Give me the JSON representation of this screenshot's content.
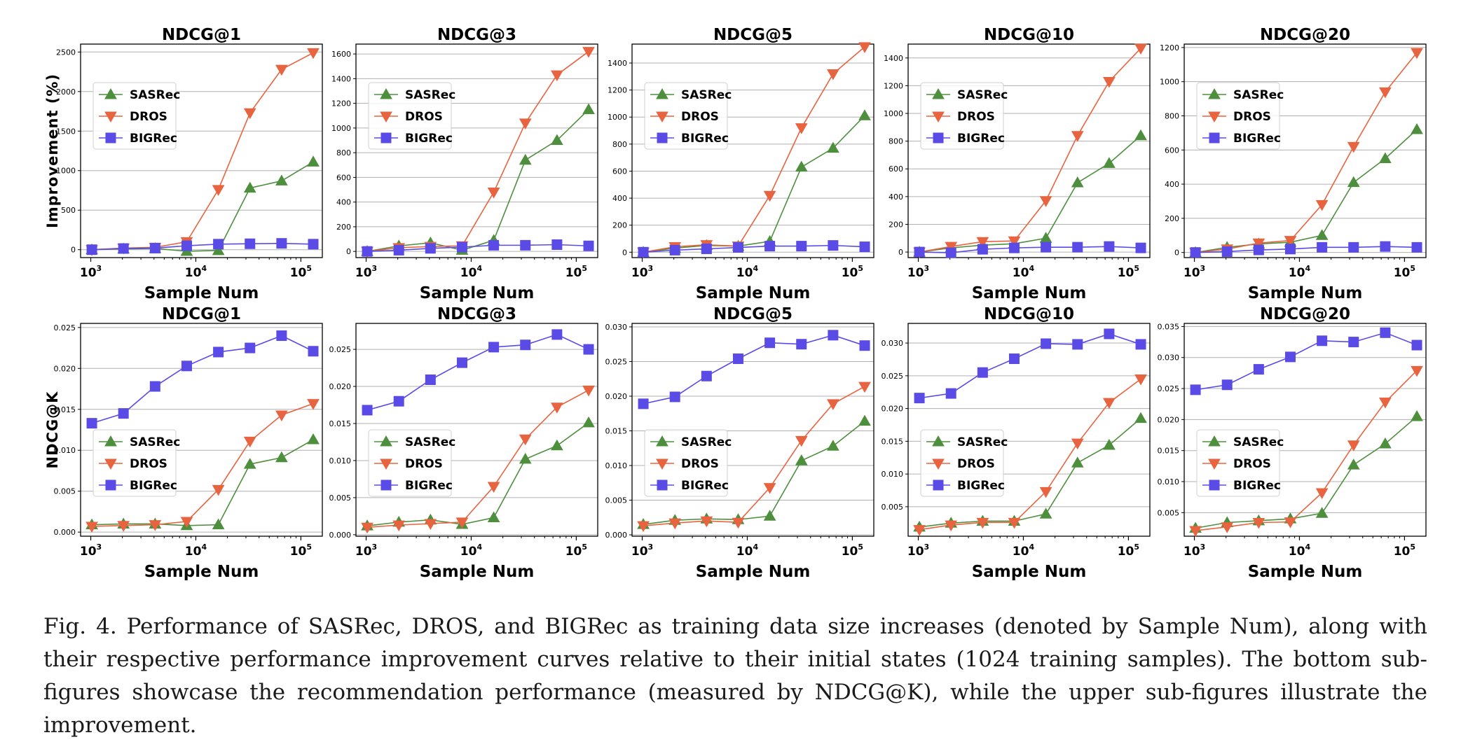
{
  "colors": {
    "SASRec": "#4e8f3e",
    "DROS": "#e8633f",
    "BIGRec": "#5a4be6",
    "grid": "#b0b0b0"
  },
  "legend_labels": [
    "SASRec",
    "DROS",
    "BIGRec"
  ],
  "xtick_labels": [
    {
      "base": "10",
      "exp": "3"
    },
    {
      "base": "10",
      "exp": "4"
    },
    {
      "base": "10",
      "exp": "5"
    }
  ],
  "caption": "Fig. 4.  Performance of SASRec, DROS, and BIGRec as training data size increases (denoted by Sample Num), along with their respective performance improvement curves relative to their initial states (1024 training samples). The bottom sub-figures showcase the recommendation performance (measured by NDCG@K), while the upper sub-figures illustrate the improvement.",
  "chart_data": [
    {
      "type": "line",
      "title": "NDCG@1",
      "xlabel": "Sample Num",
      "ylabel": "Improvement (%)",
      "xscale": "log",
      "xlim": [
        800,
        160000
      ],
      "ylim": [
        -100,
        2600
      ],
      "yticks": [
        0,
        500,
        1000,
        1500,
        2000,
        2500
      ],
      "ytick_labels": [
        "0",
        "500",
        "1000",
        "1500",
        "2000",
        "2500"
      ],
      "grid": "horizontal",
      "legend_position": "upper-left",
      "x": [
        1024,
        2048,
        4096,
        8192,
        16384,
        32768,
        65536,
        131072
      ],
      "series": [
        {
          "name": "SASRec",
          "values": [
            0,
            10,
            15,
            -20,
            -10,
            780,
            870,
            1110
          ]
        },
        {
          "name": "DROS",
          "values": [
            0,
            20,
            30,
            100,
            760,
            1730,
            2280,
            2490
          ]
        },
        {
          "name": "BIGRec",
          "values": [
            0,
            15,
            20,
            50,
            70,
            75,
            80,
            70
          ]
        }
      ]
    },
    {
      "type": "line",
      "title": "NDCG@3",
      "xlabel": "Sample Num",
      "ylabel": "",
      "xscale": "log",
      "xlim": [
        800,
        160000
      ],
      "ylim": [
        -50,
        1680
      ],
      "yticks": [
        0,
        200,
        400,
        600,
        800,
        1000,
        1200,
        1400,
        1600
      ],
      "ytick_labels": [
        "0",
        "200",
        "400",
        "600",
        "800",
        "1000",
        "1200",
        "1400",
        "1600"
      ],
      "grid": "horizontal",
      "legend_position": "upper-left",
      "x": [
        1024,
        2048,
        4096,
        8192,
        16384,
        32768,
        65536,
        131072
      ],
      "series": [
        {
          "name": "SASRec",
          "values": [
            0,
            45,
            70,
            10,
            90,
            740,
            900,
            1150
          ]
        },
        {
          "name": "DROS",
          "values": [
            0,
            30,
            40,
            45,
            480,
            1040,
            1430,
            1620
          ]
        },
        {
          "name": "BIGRec",
          "values": [
            0,
            10,
            25,
            35,
            50,
            50,
            55,
            45
          ]
        }
      ]
    },
    {
      "type": "line",
      "title": "NDCG@5",
      "xlabel": "Sample Num",
      "ylabel": "",
      "xscale": "log",
      "xlim": [
        800,
        160000
      ],
      "ylim": [
        -40,
        1540
      ],
      "yticks": [
        0,
        200,
        400,
        600,
        800,
        1000,
        1200,
        1400
      ],
      "ytick_labels": [
        "0",
        "200",
        "400",
        "600",
        "800",
        "1000",
        "1200",
        "1400"
      ],
      "grid": "horizontal",
      "legend_position": "upper-left",
      "x": [
        1024,
        2048,
        4096,
        8192,
        16384,
        32768,
        65536,
        131072
      ],
      "series": [
        {
          "name": "SASRec",
          "values": [
            0,
            30,
            50,
            45,
            80,
            630,
            770,
            1010
          ]
        },
        {
          "name": "DROS",
          "values": [
            0,
            40,
            55,
            45,
            420,
            920,
            1320,
            1520
          ]
        },
        {
          "name": "BIGRec",
          "values": [
            0,
            15,
            25,
            35,
            45,
            45,
            50,
            40
          ]
        }
      ]
    },
    {
      "type": "line",
      "title": "NDCG@10",
      "xlabel": "Sample Num",
      "ylabel": "",
      "xscale": "log",
      "xlim": [
        800,
        160000
      ],
      "ylim": [
        -40,
        1500
      ],
      "yticks": [
        0,
        200,
        400,
        600,
        800,
        1000,
        1200,
        1400
      ],
      "ytick_labels": [
        "0",
        "200",
        "400",
        "600",
        "800",
        "1000",
        "1200",
        "1400"
      ],
      "grid": "horizontal",
      "legend_position": "upper-left",
      "x": [
        1024,
        2048,
        4096,
        8192,
        16384,
        32768,
        65536,
        131072
      ],
      "series": [
        {
          "name": "SASRec",
          "values": [
            0,
            30,
            50,
            60,
            100,
            500,
            640,
            840
          ]
        },
        {
          "name": "DROS",
          "values": [
            0,
            40,
            75,
            80,
            370,
            840,
            1230,
            1470
          ]
        },
        {
          "name": "BIGRec",
          "values": [
            0,
            -5,
            20,
            30,
            35,
            35,
            40,
            30
          ]
        }
      ]
    },
    {
      "type": "line",
      "title": "NDCG@20",
      "xlabel": "Sample Num",
      "ylabel": "",
      "xscale": "log",
      "xlim": [
        800,
        160000
      ],
      "ylim": [
        -30,
        1220
      ],
      "yticks": [
        0,
        200,
        400,
        600,
        800,
        1000,
        1200
      ],
      "ytick_labels": [
        "0",
        "200",
        "400",
        "600",
        "800",
        "1000",
        "1200"
      ],
      "grid": "horizontal",
      "legend_position": "upper-left",
      "x": [
        1024,
        2048,
        4096,
        8192,
        16384,
        32768,
        65536,
        131072
      ],
      "series": [
        {
          "name": "SASRec",
          "values": [
            0,
            30,
            50,
            60,
            100,
            410,
            550,
            720
          ]
        },
        {
          "name": "DROS",
          "values": [
            0,
            20,
            55,
            70,
            280,
            620,
            940,
            1170
          ]
        },
        {
          "name": "BIGRec",
          "values": [
            0,
            5,
            15,
            20,
            30,
            30,
            35,
            30
          ]
        }
      ]
    },
    {
      "type": "line",
      "title": "NDCG@1",
      "xlabel": "Sample Num",
      "ylabel": "NDCG@K",
      "xscale": "log",
      "xlim": [
        800,
        160000
      ],
      "ylim": [
        -0.0005,
        0.0255
      ],
      "yticks": [
        0,
        0.005,
        0.01,
        0.015,
        0.02,
        0.025
      ],
      "ytick_labels": [
        "0.000",
        "0.005",
        "0.010",
        "0.015",
        "0.020",
        "0.025"
      ],
      "grid": "horizontal",
      "legend_position": "lower-left",
      "x": [
        1024,
        2048,
        4096,
        8192,
        16384,
        32768,
        65536,
        131072
      ],
      "series": [
        {
          "name": "SASRec",
          "values": [
            0.0009,
            0.001,
            0.001,
            0.0008,
            0.0009,
            0.0083,
            0.0091,
            0.0113
          ]
        },
        {
          "name": "DROS",
          "values": [
            0.0007,
            0.0008,
            0.0009,
            0.0013,
            0.0052,
            0.0111,
            0.0143,
            0.0157
          ]
        },
        {
          "name": "BIGRec",
          "values": [
            0.0133,
            0.0145,
            0.0178,
            0.0203,
            0.022,
            0.0225,
            0.024,
            0.0221
          ]
        }
      ]
    },
    {
      "type": "line",
      "title": "NDCG@3",
      "xlabel": "Sample Num",
      "ylabel": "",
      "xscale": "log",
      "xlim": [
        800,
        160000
      ],
      "ylim": [
        -0.0002,
        0.0285
      ],
      "yticks": [
        0,
        0.005,
        0.01,
        0.015,
        0.02,
        0.025
      ],
      "ytick_labels": [
        "0.000",
        "0.005",
        "0.010",
        "0.015",
        "0.020",
        "0.025"
      ],
      "grid": "horizontal",
      "legend_position": "lower-left",
      "x": [
        1024,
        2048,
        4096,
        8192,
        16384,
        32768,
        65536,
        131072
      ],
      "series": [
        {
          "name": "SASRec",
          "values": [
            0.0012,
            0.0017,
            0.002,
            0.0014,
            0.0023,
            0.0102,
            0.012,
            0.0151
          ]
        },
        {
          "name": "DROS",
          "values": [
            0.001,
            0.0013,
            0.0015,
            0.0017,
            0.0065,
            0.0129,
            0.0172,
            0.0195
          ]
        },
        {
          "name": "BIGRec",
          "values": [
            0.0168,
            0.018,
            0.0209,
            0.0232,
            0.0253,
            0.0256,
            0.027,
            0.025
          ]
        }
      ]
    },
    {
      "type": "line",
      "title": "NDCG@5",
      "xlabel": "Sample Num",
      "ylabel": "",
      "xscale": "log",
      "xlim": [
        800,
        160000
      ],
      "ylim": [
        -0.0002,
        0.0305
      ],
      "yticks": [
        0,
        0.005,
        0.01,
        0.015,
        0.02,
        0.025,
        0.03
      ],
      "ytick_labels": [
        "0.000",
        "0.005",
        "0.010",
        "0.015",
        "0.020",
        "0.025",
        "0.030"
      ],
      "grid": "horizontal",
      "legend_position": "lower-left",
      "x": [
        1024,
        2048,
        4096,
        8192,
        16384,
        32768,
        65536,
        131072
      ],
      "series": [
        {
          "name": "SASRec",
          "values": [
            0.0015,
            0.0021,
            0.0023,
            0.0022,
            0.0027,
            0.0107,
            0.0128,
            0.0164
          ]
        },
        {
          "name": "DROS",
          "values": [
            0.0013,
            0.0017,
            0.002,
            0.0018,
            0.0068,
            0.0136,
            0.0189,
            0.0214
          ]
        },
        {
          "name": "BIGRec",
          "values": [
            0.0189,
            0.0199,
            0.0229,
            0.0254,
            0.0277,
            0.0275,
            0.0288,
            0.0273
          ]
        }
      ]
    },
    {
      "type": "line",
      "title": "NDCG@10",
      "xlabel": "Sample Num",
      "ylabel": "",
      "xscale": "log",
      "xlim": [
        800,
        160000
      ],
      "ylim": [
        0.0005,
        0.033
      ],
      "yticks": [
        0.005,
        0.01,
        0.015,
        0.02,
        0.025,
        0.03
      ],
      "ytick_labels": [
        "0.005",
        "0.010",
        "0.015",
        "0.020",
        "0.025",
        "0.030"
      ],
      "grid": "horizontal",
      "legend_position": "lower-left",
      "x": [
        1024,
        2048,
        4096,
        8192,
        16384,
        32768,
        65536,
        131072
      ],
      "series": [
        {
          "name": "SASRec",
          "values": [
            0.0019,
            0.0025,
            0.0028,
            0.0028,
            0.0039,
            0.0117,
            0.0144,
            0.0185
          ]
        },
        {
          "name": "DROS",
          "values": [
            0.0015,
            0.0022,
            0.0026,
            0.0026,
            0.0073,
            0.0147,
            0.0209,
            0.0245
          ]
        },
        {
          "name": "BIGRec",
          "values": [
            0.0216,
            0.0223,
            0.0255,
            0.0276,
            0.0299,
            0.0298,
            0.0314,
            0.0298
          ]
        }
      ]
    },
    {
      "type": "line",
      "title": "NDCG@20",
      "xlabel": "Sample Num",
      "ylabel": "",
      "xscale": "log",
      "xlim": [
        800,
        160000
      ],
      "ylim": [
        0.0012,
        0.0355
      ],
      "yticks": [
        0.005,
        0.01,
        0.015,
        0.02,
        0.025,
        0.03,
        0.035
      ],
      "ytick_labels": [
        "0.005",
        "0.010",
        "0.015",
        "0.020",
        "0.025",
        "0.030",
        "0.035"
      ],
      "grid": "horizontal",
      "legend_position": "lower-left",
      "x": [
        1024,
        2048,
        4096,
        8192,
        16384,
        32768,
        65536,
        131072
      ],
      "series": [
        {
          "name": "SASRec",
          "values": [
            0.0025,
            0.0034,
            0.0037,
            0.004,
            0.0049,
            0.0127,
            0.0161,
            0.0205
          ]
        },
        {
          "name": "DROS",
          "values": [
            0.0021,
            0.0027,
            0.0034,
            0.0035,
            0.0082,
            0.0159,
            0.0228,
            0.0279
          ]
        },
        {
          "name": "BIGRec",
          "values": [
            0.0248,
            0.0256,
            0.0281,
            0.0301,
            0.0327,
            0.0325,
            0.034,
            0.032
          ]
        }
      ]
    }
  ]
}
